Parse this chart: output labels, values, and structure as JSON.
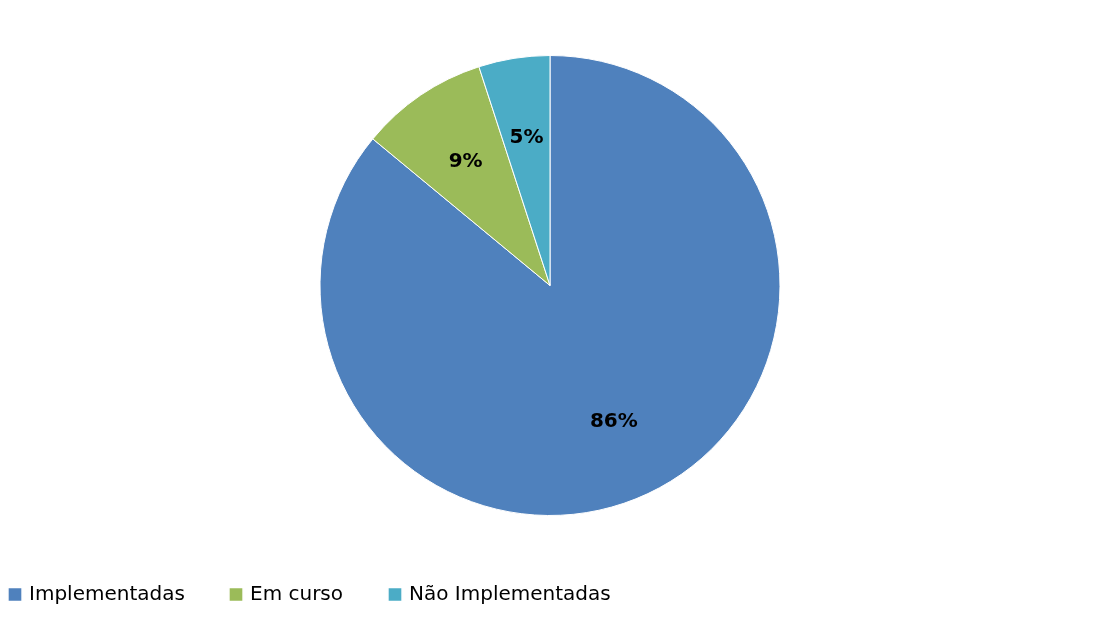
{
  "chart_data": {
    "type": "pie",
    "categories": [
      "Implementadas",
      "Em curso",
      "Não Implementadas"
    ],
    "values": [
      86,
      9,
      5
    ],
    "colors": [
      "#4f81bd",
      "#9bbb59",
      "#4bacc6"
    ],
    "value_labels": [
      "86%",
      "9%",
      "5%"
    ],
    "legend": "bottom"
  }
}
